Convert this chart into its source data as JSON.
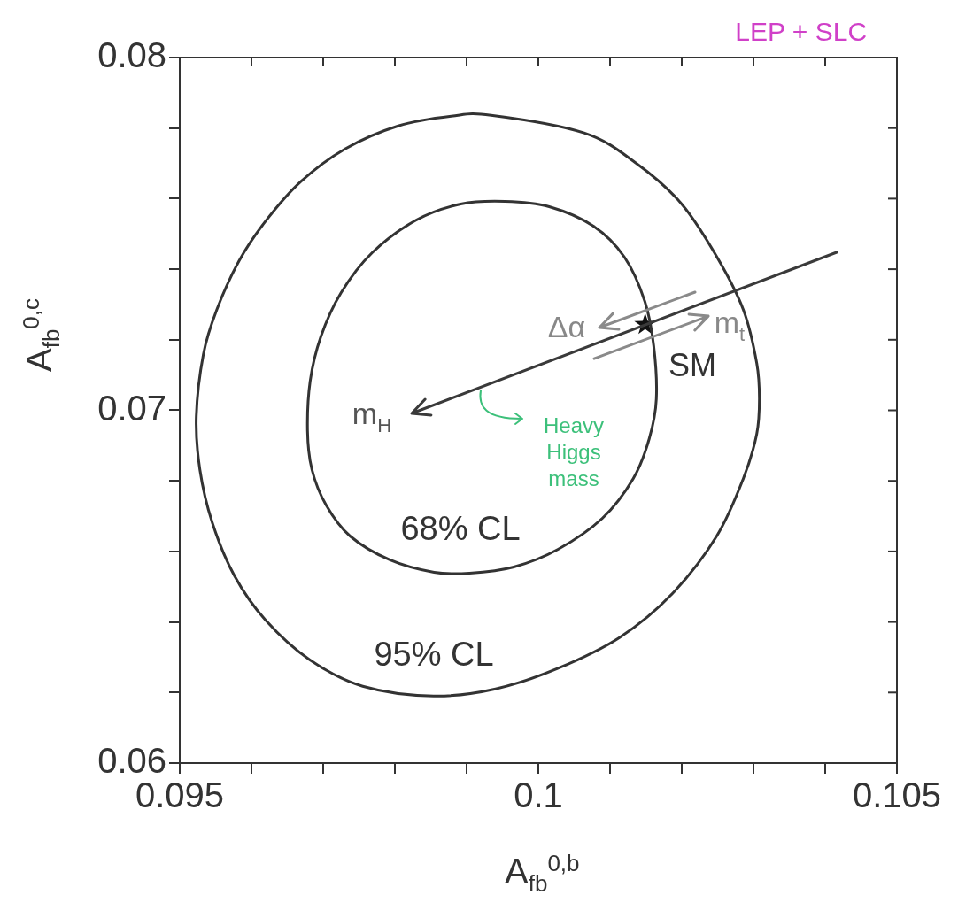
{
  "chart_data": {
    "type": "scatter",
    "xlabel": "A$_{fb}$$^{0,b}$",
    "ylabel": "A$_{fb}$$^{0,c}$",
    "xlim": [
      0.095,
      0.105
    ],
    "ylim": [
      0.06,
      0.08
    ],
    "xticks": [
      0.095,
      {
        "value": 0.096,
        "label": null
      },
      {
        "value": 0.097,
        "label": null
      },
      {
        "value": 0.098,
        "label": null
      },
      {
        "value": 0.099,
        "label": null
      },
      {
        "value": 0.1,
        "label": "0.1"
      },
      {
        "value": 0.101,
        "label": null
      },
      {
        "value": 0.102,
        "label": null
      },
      {
        "value": 0.103,
        "label": null
      },
      {
        "value": 0.104,
        "label": null
      },
      0.105
    ],
    "yticks": [
      {
        "value": 0.06,
        "label": "0.06"
      },
      {
        "value": 0.062,
        "label": null
      },
      {
        "value": 0.064,
        "label": null
      },
      {
        "value": 0.066,
        "label": null
      },
      {
        "value": 0.068,
        "label": null
      },
      {
        "value": 0.07,
        "label": "0.07"
      },
      {
        "value": 0.072,
        "label": null
      },
      {
        "value": 0.074,
        "label": null
      },
      {
        "value": 0.076,
        "label": null
      },
      {
        "value": 0.078,
        "label": null
      },
      {
        "value": 0.08,
        "label": "0.08"
      }
    ],
    "marker": "star",
    "series": [
      {
        "color": "#111111",
        "x": [
          0.10149
        ],
        "values": [
          0.07243
        ]
      }
    ],
    "annotations": [
      "Δα",
      "m$_{t}$",
      "SM",
      "m$_{H}$",
      "68% CL",
      "95% CL",
      "Heavy Higgs mass",
      "LEP + SLC"
    ]
  }
}
